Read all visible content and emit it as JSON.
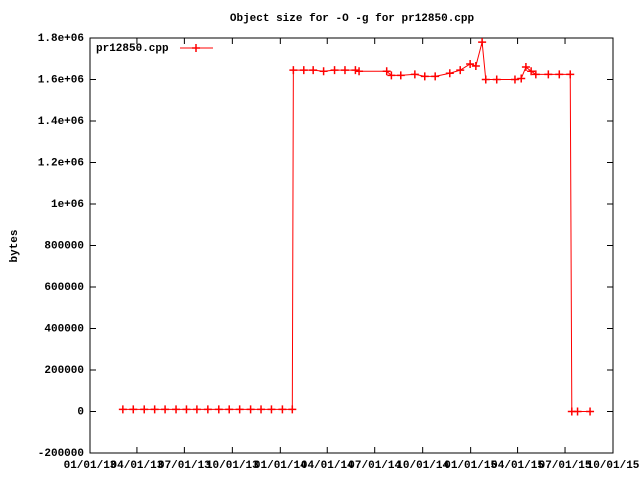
{
  "chart_data": {
    "type": "line",
    "title": "Object size for -O -g for pr12850.cpp",
    "y_label": "bytes",
    "xlim": [
      "2013-01-01",
      "2015-10-01"
    ],
    "xticks": [
      {
        "value": "2013-01-01",
        "label": "01/01/13"
      },
      {
        "value": "2013-04-01",
        "label": "04/01/13"
      },
      {
        "value": "2013-07-01",
        "label": "07/01/13"
      },
      {
        "value": "2013-10-01",
        "label": "10/01/13"
      },
      {
        "value": "2014-01-01",
        "label": "01/01/14"
      },
      {
        "value": "2014-04-01",
        "label": "04/01/14"
      },
      {
        "value": "2014-07-01",
        "label": "07/01/14"
      },
      {
        "value": "2014-10-01",
        "label": "10/01/14"
      },
      {
        "value": "2015-01-01",
        "label": "01/01/15"
      },
      {
        "value": "2015-04-01",
        "label": "04/01/15"
      },
      {
        "value": "2015-07-01",
        "label": "07/01/15"
      },
      {
        "value": "2015-10-01",
        "label": "10/01/15"
      }
    ],
    "ylim": [
      -200000,
      1800000
    ],
    "yticks": [
      -200000,
      0,
      200000,
      400000,
      600000,
      800000,
      {
        "value": 1000000,
        "label": "1e+06"
      },
      {
        "value": 1200000,
        "label": "1.2e+06"
      },
      {
        "value": 1400000,
        "label": "1.4e+06"
      },
      {
        "value": 1600000,
        "label": "1.6e+06"
      },
      {
        "value": 1800000,
        "label": "1.8e+06"
      }
    ],
    "legend": "top-left",
    "series": [
      {
        "name": "pr12850.cpp",
        "color": "#ff0000",
        "x": [
          "2013-03-05",
          "2013-03-25",
          "2013-04-15",
          "2013-05-05",
          "2013-05-25",
          "2013-06-15",
          "2013-07-05",
          "2013-07-25",
          "2013-08-15",
          "2013-09-05",
          "2013-09-25",
          "2013-10-15",
          "2013-11-05",
          "2013-11-25",
          "2013-12-15",
          "2014-01-05",
          "2014-01-24",
          "2014-01-26",
          "2014-02-15",
          "2014-03-05",
          "2014-03-25",
          "2014-04-15",
          "2014-05-05",
          "2014-05-25",
          "2014-06-01",
          "2014-07-24",
          "2014-08-02",
          "2014-08-20",
          "2014-09-16",
          "2014-10-05",
          "2014-10-25",
          "2014-11-22",
          "2014-12-12",
          "2014-12-31",
          "2015-01-11",
          "2015-01-23",
          "2015-01-30",
          "2015-02-20",
          "2015-03-27",
          "2015-04-08",
          "2015-04-17",
          "2015-04-27",
          "2015-05-06",
          "2015-05-30",
          "2015-06-20",
          "2015-07-11",
          "2015-07-14",
          "2015-07-25",
          "2015-08-18"
        ],
        "values": [
          10000,
          10000,
          10000,
          10000,
          10000,
          10000,
          10000,
          10000,
          10000,
          10000,
          10000,
          10000,
          10000,
          10000,
          10000,
          10000,
          10000,
          1645000,
          1645000,
          1645000,
          1640000,
          1645000,
          1645000,
          1645000,
          1640000,
          1640000,
          1620000,
          1620000,
          1625000,
          1615000,
          1615000,
          1630000,
          1645000,
          1675000,
          1665000,
          1780000,
          1600000,
          1600000,
          1600000,
          1605000,
          1660000,
          1640000,
          1625000,
          1625000,
          1625000,
          1625000,
          0,
          0,
          0
        ]
      }
    ]
  }
}
